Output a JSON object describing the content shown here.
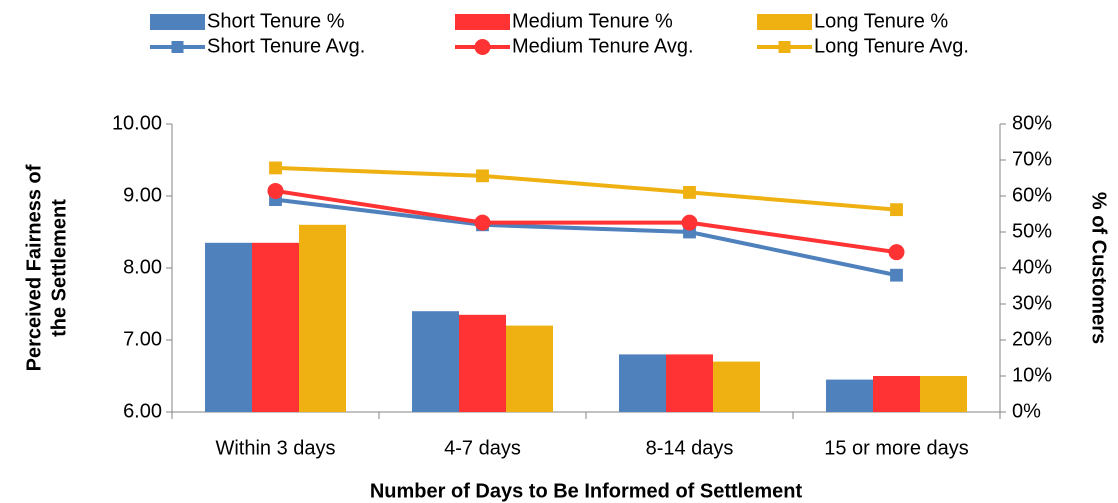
{
  "chart_data": {
    "type": "bar-line",
    "x_label": "Number of Days to Be Informed of Settlement",
    "y_label": [
      "Perceived Fairness of",
      "the Settlement"
    ],
    "y2_label": "% of Customers",
    "categories": [
      "Within 3 days",
      "4-7 days",
      "8-14 days",
      "15 or more days"
    ],
    "ylim": [
      6,
      10
    ],
    "yticks": [
      {
        "value": 6,
        "label": "6.00"
      },
      {
        "value": 7,
        "label": "7.00"
      },
      {
        "value": 8,
        "label": "8.00"
      },
      {
        "value": 9,
        "label": "9.00"
      },
      {
        "value": 10,
        "label": "10.00"
      }
    ],
    "y2lim": [
      0,
      80
    ],
    "y2ticks": [
      {
        "value": 0,
        "label": "0%"
      },
      {
        "value": 10,
        "label": "10%"
      },
      {
        "value": 20,
        "label": "20%"
      },
      {
        "value": 30,
        "label": "30%"
      },
      {
        "value": 40,
        "label": "40%"
      },
      {
        "value": 50,
        "label": "50%"
      },
      {
        "value": 60,
        "label": "60%"
      },
      {
        "value": 70,
        "label": "70%"
      },
      {
        "value": 80,
        "label": "80%"
      }
    ],
    "grid": false,
    "legend": "top",
    "series": [
      {
        "name": "Short Tenure %",
        "type": "bar",
        "axis": "y2",
        "color": "#4f81bd",
        "values": [
          47,
          28,
          16,
          9
        ]
      },
      {
        "name": "Medium Tenure %",
        "type": "bar",
        "axis": "y2",
        "color": "#ff3333",
        "values": [
          47,
          27,
          16,
          10
        ]
      },
      {
        "name": "Long Tenure %",
        "type": "bar",
        "axis": "y2",
        "color": "#eeb111",
        "values": [
          52,
          24,
          14,
          10
        ]
      },
      {
        "name": "Short Tenure Avg.",
        "type": "line",
        "marker": "square",
        "color": "#4f81bd",
        "values": [
          8.95,
          8.6,
          8.5,
          7.9
        ]
      },
      {
        "name": "Medium Tenure Avg.",
        "type": "line",
        "marker": "circle",
        "color": "#ff3333",
        "values": [
          9.07,
          8.63,
          8.63,
          8.22
        ]
      },
      {
        "name": "Long Tenure Avg.",
        "type": "line",
        "marker": "square",
        "color": "#eeb111",
        "values": [
          9.39,
          9.28,
          9.05,
          8.81
        ]
      }
    ]
  }
}
